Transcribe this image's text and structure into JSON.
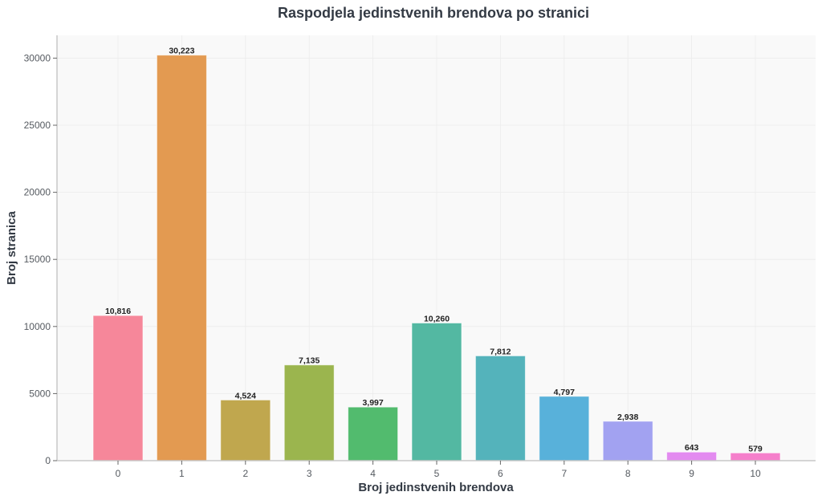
{
  "chart_data": {
    "type": "bar",
    "title": "Raspodjela jedinstvenih brendova po stranici",
    "xlabel": "Broj jedinstvenih brendova",
    "ylabel": "Broj stranica",
    "categories": [
      "0",
      "1",
      "2",
      "3",
      "4",
      "5",
      "6",
      "7",
      "8",
      "9",
      "10"
    ],
    "values": [
      10816,
      30223,
      4524,
      7135,
      3997,
      10260,
      7812,
      4797,
      2938,
      643,
      579
    ],
    "data_labels": [
      "10,816",
      "30,223",
      "4,524",
      "7,135",
      "3,997",
      "10,260",
      "7,812",
      "4,797",
      "2,938",
      "643",
      "579"
    ],
    "colors": [
      "#f6879a",
      "#e39a51",
      "#c0a74e",
      "#9bb54e",
      "#52bb6e",
      "#53b8a2",
      "#54b3bb",
      "#58b1da",
      "#a2a2f1",
      "#e38bf0",
      "#f57fcb"
    ],
    "yticks": [
      0,
      5000,
      10000,
      15000,
      20000,
      25000,
      30000
    ],
    "ytick_labels": [
      "0",
      "5000",
      "10000",
      "15000",
      "20000",
      "25000",
      "30000"
    ],
    "ylim": [
      0,
      31700
    ],
    "grid": true,
    "legend": "none"
  }
}
